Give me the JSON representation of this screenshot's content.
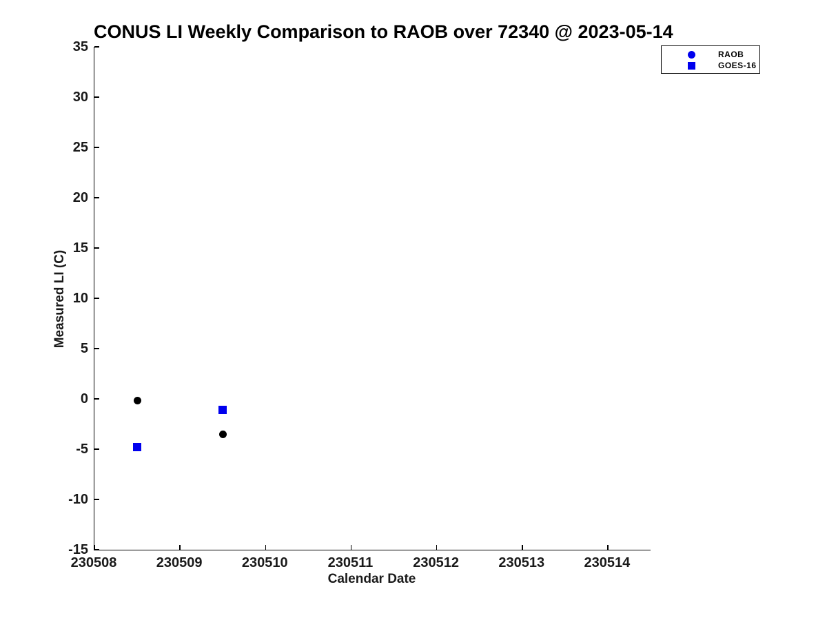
{
  "chart_data": {
    "type": "scatter",
    "title": "CONUS LI Weekly Comparison to RAOB over 72340 @ 2023-05-14",
    "xlabel": "Calendar Date",
    "ylabel": "Measured LI (C)",
    "xlim": [
      230508,
      230514.5
    ],
    "ylim": [
      -15,
      35
    ],
    "xticks": [
      230508,
      230509,
      230510,
      230511,
      230512,
      230513,
      230514
    ],
    "xtick_labels": [
      "230508",
      "230509",
      "230510",
      "230511",
      "230512",
      "230513",
      "230514"
    ],
    "yticks": [
      35,
      30,
      25,
      20,
      15,
      10,
      5,
      0,
      -5,
      -10,
      -15
    ],
    "ytick_labels": [
      "35",
      "30",
      "25",
      "20",
      "15",
      "10",
      "5",
      "0",
      "-5",
      "-10",
      "-15"
    ],
    "grid": false,
    "legend_position": "upper-right",
    "series": [
      {
        "name": "RAOB",
        "marker": "circle",
        "marker_color": "#000000",
        "legend_marker_color": "#0000ee",
        "points": [
          {
            "x": 230508.5,
            "y": -0.2
          },
          {
            "x": 230509.5,
            "y": -3.5
          }
        ]
      },
      {
        "name": "GOES-16",
        "marker": "square",
        "marker_color": "#0000ee",
        "legend_marker_color": "#0000ee",
        "points": [
          {
            "x": 230508.5,
            "y": -4.8
          },
          {
            "x": 230509.5,
            "y": -1.1
          }
        ]
      }
    ]
  },
  "colors": {
    "axis": "#000000",
    "text": "#1a1a1a",
    "blue": "#0000ee",
    "black": "#000000",
    "background": "#ffffff"
  }
}
